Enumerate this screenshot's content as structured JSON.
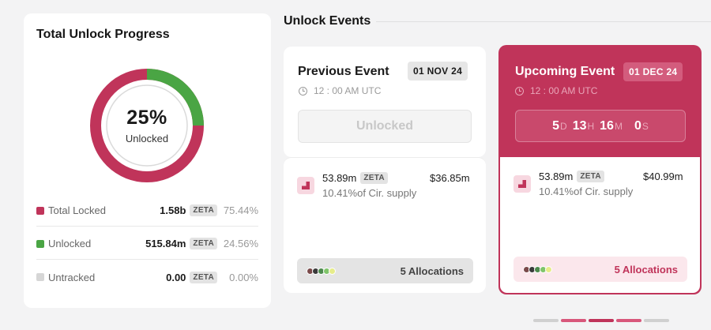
{
  "progress": {
    "title": "Total Unlock Progress",
    "percent_label": "25%",
    "center_label": "Unlocked",
    "unlocked_fraction": 0.25,
    "colors": {
      "locked": "#c0345a",
      "unlocked": "#4aa544",
      "untracked": "#d6d6d6"
    },
    "legend": [
      {
        "name": "Total Locked",
        "value": "1.58b",
        "token": "ZETA",
        "pct": "75.44%"
      },
      {
        "name": "Unlocked",
        "value": "515.84m",
        "token": "ZETA",
        "pct": "24.56%"
      },
      {
        "name": "Untracked",
        "value": "0.00",
        "token": "ZETA",
        "pct": "0.00%"
      }
    ]
  },
  "events": {
    "section_title": "Unlock Events",
    "previous": {
      "title": "Previous Event",
      "date": "01 NOV 24",
      "time": "12 : 00 AM UTC",
      "status_button": "Unlocked",
      "allocation": {
        "amount": "53.89m",
        "token": "ZETA",
        "usd": "$36.85m",
        "supply": "10.41%of Cir. supply"
      },
      "allocations_label": "5 Allocations"
    },
    "upcoming": {
      "title": "Upcoming Event",
      "date": "01 DEC 24",
      "time": "12 : 00 AM UTC",
      "countdown": {
        "days": "5",
        "days_unit": "D",
        "hours": "13",
        "hours_unit": "H",
        "minutes": "16",
        "minutes_unit": "M",
        "seconds": "0",
        "seconds_unit": "S"
      },
      "allocation": {
        "amount": "53.89m",
        "token": "ZETA",
        "usd": "$40.99m",
        "supply": "10.41%of Cir. supply"
      },
      "allocations_label": "5 Allocations"
    }
  },
  "allocation_dot_colors": [
    "#7a4a4a",
    "#3a3a3a",
    "#4d8a4d",
    "#7fc46a",
    "#e6ec8a"
  ],
  "pager_colors": [
    "#d0d0d0",
    "#d8577b",
    "#c0345a",
    "#d8577b",
    "#d0d0d0"
  ]
}
